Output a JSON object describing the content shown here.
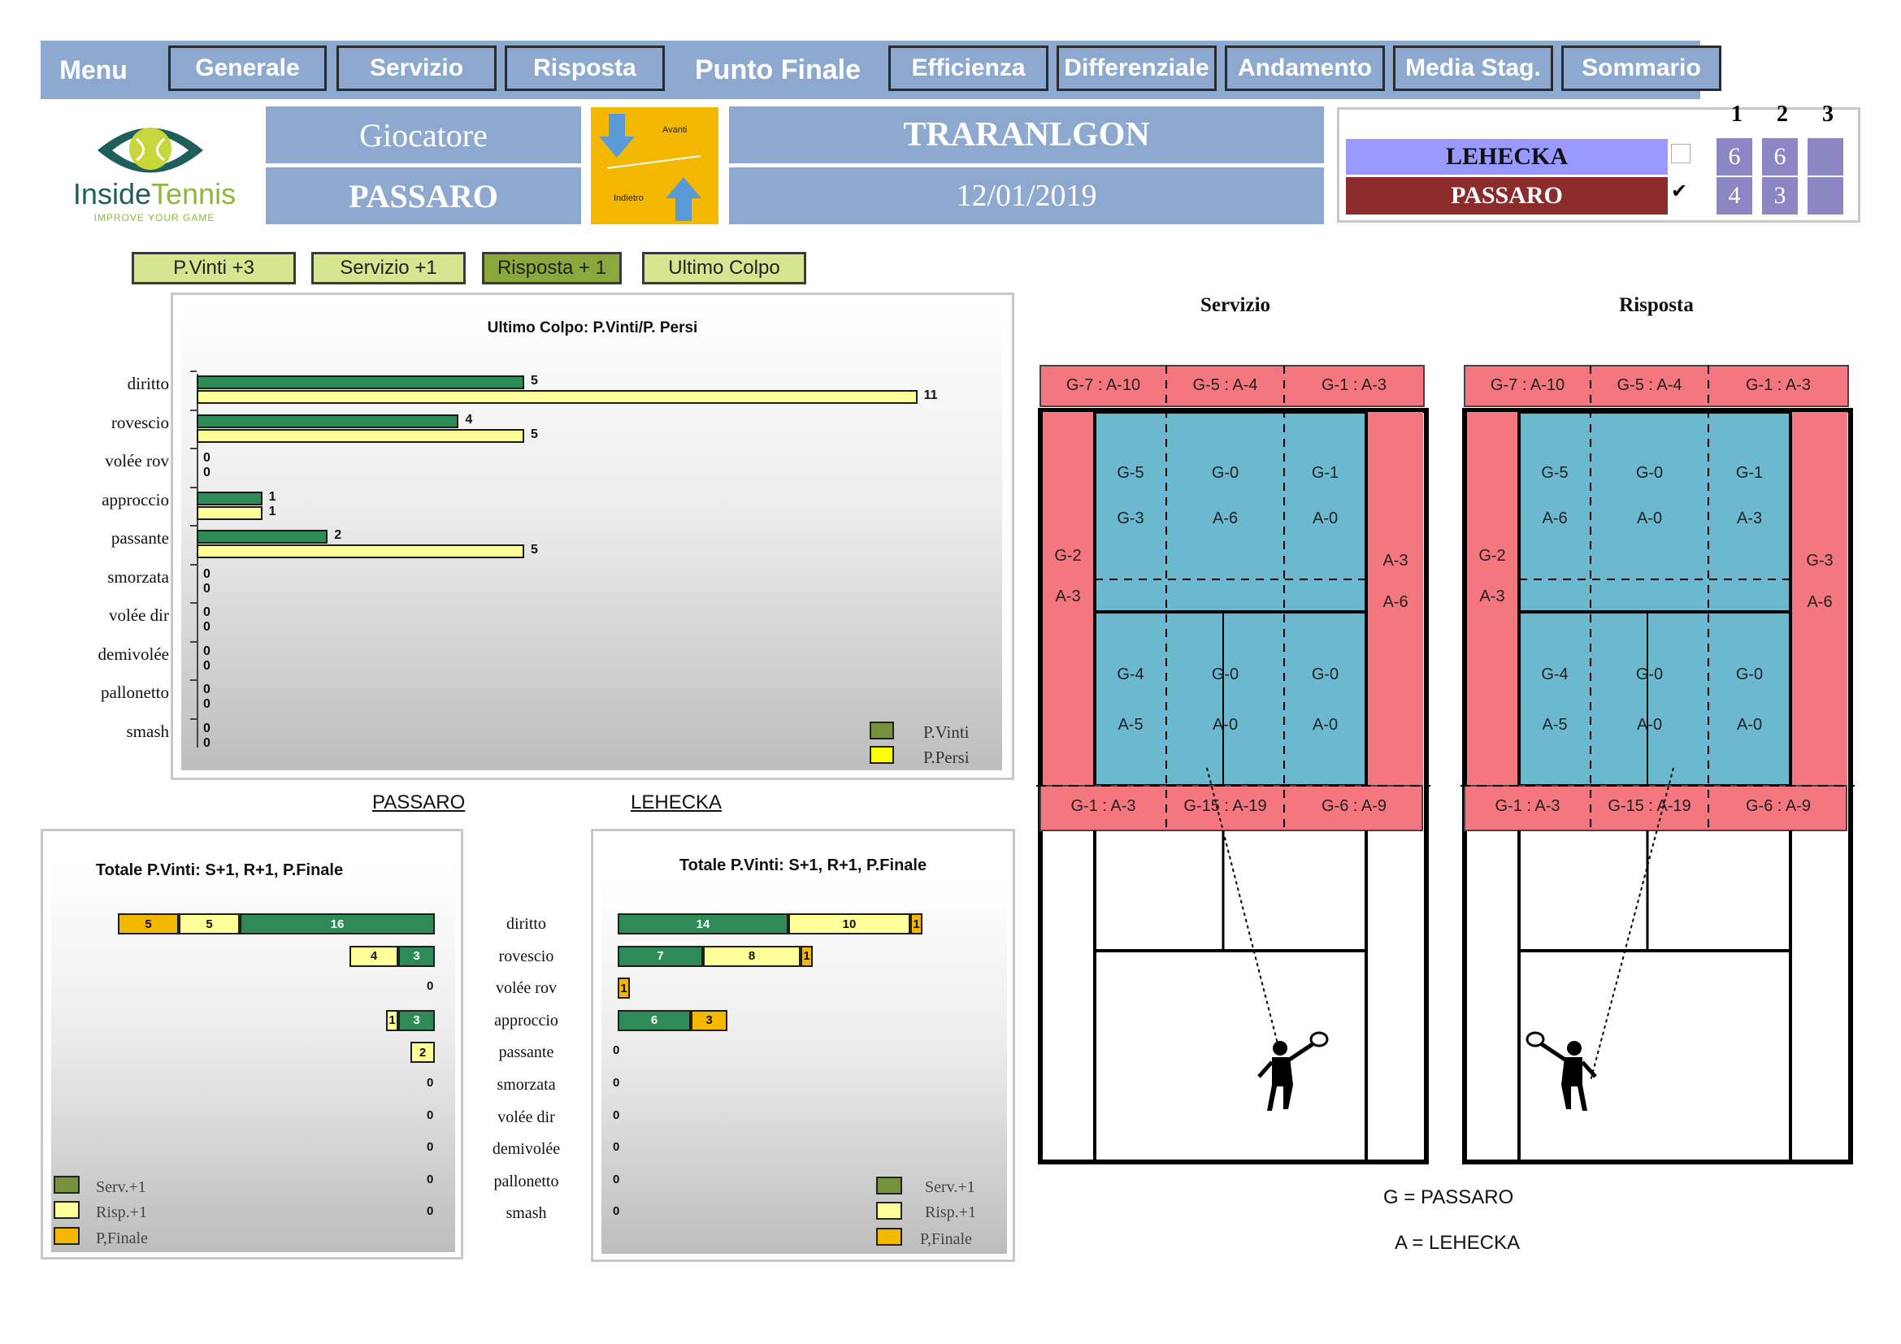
{
  "nav": {
    "menu": "Menu",
    "generale": "Generale",
    "servizio": "Servizio",
    "risposta": "Risposta",
    "punto_finale": "Punto Finale",
    "efficienza": "Efficienza",
    "differenziale": "Differenziale",
    "andamento": "Andamento",
    "media_stag": "Media Stag.",
    "sommario": "Sommario"
  },
  "logo": {
    "name_a": "Inside",
    "name_b": "Tennis",
    "tagline": "IMPROVE YOUR GAME"
  },
  "header": {
    "giocatore_label": "Giocatore",
    "player": "PASSARO",
    "avanti": "Avanti",
    "indietro": "Indietro",
    "tournament": "TRARANLGON",
    "date": "12/01/2019"
  },
  "score": {
    "set_headers": [
      "1",
      "2",
      "3"
    ],
    "p1": {
      "name": "LEHECKA",
      "sets": [
        "6",
        "6",
        ""
      ],
      "checked": false
    },
    "p2": {
      "name": "PASSARO",
      "sets": [
        "4",
        "3",
        ""
      ],
      "checked": true
    },
    "check_mark": "✔"
  },
  "filters": {
    "p_vinti": "P.Vinti +3",
    "servizio": "Servizio +1",
    "risposta": "Risposta + 1",
    "ultimo": "Ultimo Colpo"
  },
  "shots": [
    "diritto",
    "rovescio",
    "volée rov",
    "approccio",
    "passante",
    "smorzata",
    "volée dir",
    "demivolée",
    "pallonetto",
    "smash"
  ],
  "chart_data": [
    {
      "type": "bar",
      "title": "Ultimo Colpo: P.Vinti/P. Persi",
      "categories": [
        "diritto",
        "rovescio",
        "volée rov",
        "approccio",
        "passante",
        "smorzata",
        "volée dir",
        "demivolée",
        "pallonetto",
        "smash"
      ],
      "series": [
        {
          "name": "P.Vinti",
          "color": "#2e8b57",
          "values": [
            5,
            4,
            0,
            1,
            2,
            0,
            0,
            0,
            0,
            0
          ]
        },
        {
          "name": "P.Persi",
          "color": "#ffff99",
          "values": [
            11,
            5,
            0,
            1,
            5,
            0,
            0,
            0,
            0,
            0
          ]
        }
      ]
    },
    {
      "type": "bar",
      "player": "PASSARO",
      "title": "Totale P.Vinti: S+1, R+1, P.Finale",
      "categories": [
        "diritto",
        "rovescio",
        "volée rov",
        "approccio",
        "passante",
        "smorzata",
        "volée dir",
        "demivolée",
        "pallonetto",
        "smash"
      ],
      "stacked": true,
      "series": [
        {
          "name": "Serv.+1",
          "color": "#2e8b57",
          "values": [
            16,
            3,
            0,
            3,
            0,
            0,
            0,
            0,
            0,
            0
          ]
        },
        {
          "name": "Risp.+1",
          "color": "#ffff99",
          "values": [
            5,
            4,
            0,
            1,
            2,
            0,
            0,
            0,
            0,
            0
          ]
        },
        {
          "name": "P,Finale",
          "color": "#f5b800",
          "values": [
            5,
            0,
            0,
            0,
            0,
            0,
            0,
            0,
            0,
            0
          ]
        }
      ]
    },
    {
      "type": "bar",
      "player": "LEHECKA",
      "title": "Totale P.Vinti: S+1, R+1, P.Finale",
      "categories": [
        "diritto",
        "rovescio",
        "volée rov",
        "approccio",
        "passante",
        "smorzata",
        "volée dir",
        "demivolée",
        "pallonetto",
        "smash"
      ],
      "stacked": true,
      "series": [
        {
          "name": "Serv.+1",
          "color": "#2e8b57",
          "values": [
            14,
            7,
            0,
            6,
            0,
            0,
            0,
            0,
            0,
            0
          ]
        },
        {
          "name": "Risp.+1",
          "color": "#ffff99",
          "values": [
            10,
            8,
            0,
            0,
            0,
            0,
            0,
            0,
            0,
            0
          ]
        },
        {
          "name": "P,Finale",
          "color": "#f5b800",
          "values": [
            1,
            1,
            1,
            3,
            0,
            0,
            0,
            0,
            0,
            0
          ]
        }
      ]
    }
  ],
  "legend_colors": {
    "p_vinti": "#76923c",
    "p_persi": "#ffff00",
    "serv": "#76923c",
    "risp": "#ffff99",
    "pfinale": "#f5b800"
  },
  "players_labels": {
    "left": "PASSARO",
    "right": "LEHECKA"
  },
  "courts": {
    "servizio_title": "Servizio",
    "risposta_title": "Risposta",
    "servizio": {
      "top": [
        "G-7 : A-10",
        "G-5 : A-4",
        "G-1 : A-3"
      ],
      "left": [
        "G-2",
        "A-3"
      ],
      "right": [
        "A-3",
        "A-6"
      ],
      "cells_top": [
        [
          "G-5",
          "G-3"
        ],
        [
          "G-0",
          "A-6"
        ],
        [
          "G-1",
          "A-0"
        ]
      ],
      "cells_bot": [
        [
          "G-4",
          "A-5"
        ],
        [
          "G-0",
          "A-0"
        ],
        [
          "G-0",
          "A-0"
        ]
      ],
      "bottom": [
        "G-1 : A-3",
        "G-15 : A-19",
        "G-6 : A-9"
      ]
    },
    "risposta": {
      "top": [
        "G-7 : A-10",
        "G-5 : A-4",
        "G-1 : A-3"
      ],
      "left": [
        "G-2",
        "A-3"
      ],
      "right": [
        "G-3",
        "A-6"
      ],
      "cells_top": [
        [
          "G-5",
          "A-6"
        ],
        [
          "G-0",
          "A-0"
        ],
        [
          "G-1",
          "A-3"
        ]
      ],
      "cells_bot": [
        [
          "G-4",
          "A-5"
        ],
        [
          "G-0",
          "A-0"
        ],
        [
          "G-0",
          "A-0"
        ]
      ],
      "bottom": [
        "G-1 : A-3",
        "G-15 : A-19",
        "G-6 : A-9"
      ]
    },
    "legend_g": "G = PASSARO",
    "legend_a": "A = LEHECKA"
  }
}
